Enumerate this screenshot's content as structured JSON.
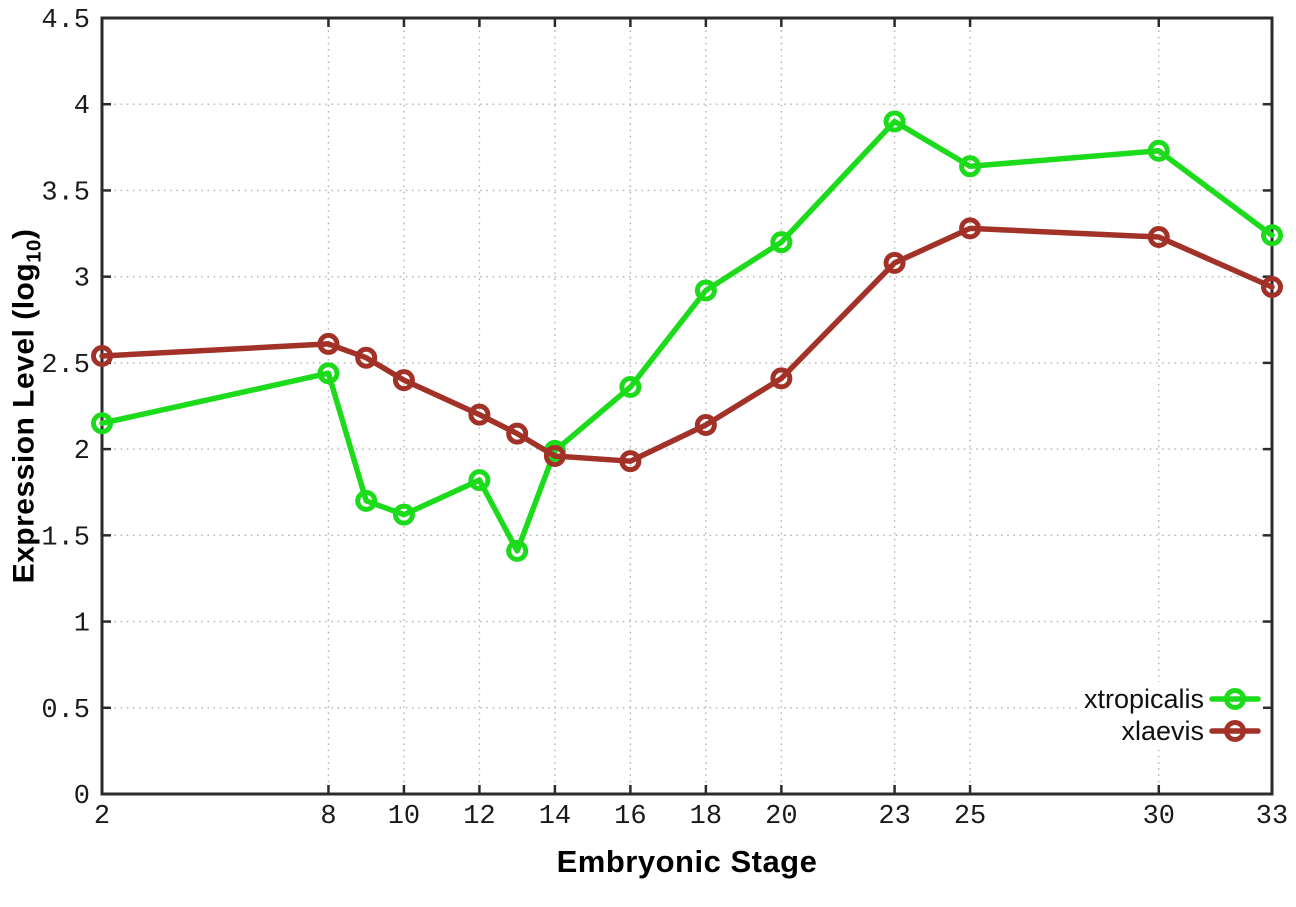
{
  "figure": {
    "background": "#ffffff",
    "axis_color": "#2b2b2b",
    "grid_color": "#b4b4b4",
    "tick_label_color": "#1a1a1a"
  },
  "chart_data": {
    "type": "line",
    "title": "",
    "xlabel": "Embryonic Stage",
    "ylabel": "Expression Level (log10)",
    "ylabel_rich": {
      "prefix": "Expression Level (log",
      "sub": "10",
      "suffix": ")"
    },
    "xlim": [
      2,
      33
    ],
    "ylim": [
      0,
      4.5
    ],
    "x_ticks": [
      2,
      8,
      10,
      12,
      14,
      16,
      18,
      20,
      23,
      25,
      30,
      33
    ],
    "y_ticks": [
      0,
      0.5,
      1,
      1.5,
      2,
      2.5,
      3,
      3.5,
      4,
      4.5
    ],
    "grid": true,
    "legend_position": "inside-bottom-right",
    "x": [
      2,
      8,
      9,
      10,
      12,
      13,
      14,
      16,
      18,
      20,
      23,
      25,
      30,
      33
    ],
    "series": [
      {
        "name": "xtropicalis",
        "color": "#1bdb1b",
        "marker": "open-circle",
        "values": [
          2.15,
          2.44,
          1.7,
          1.62,
          1.82,
          1.41,
          1.99,
          2.36,
          2.92,
          3.2,
          3.9,
          3.64,
          3.73,
          3.24
        ]
      },
      {
        "name": "xlaevis",
        "color": "#a23228",
        "marker": "open-circle",
        "values": [
          2.54,
          2.61,
          2.53,
          2.4,
          2.2,
          2.09,
          1.96,
          1.93,
          2.14,
          2.41,
          3.08,
          3.28,
          3.23,
          2.94
        ]
      }
    ]
  }
}
